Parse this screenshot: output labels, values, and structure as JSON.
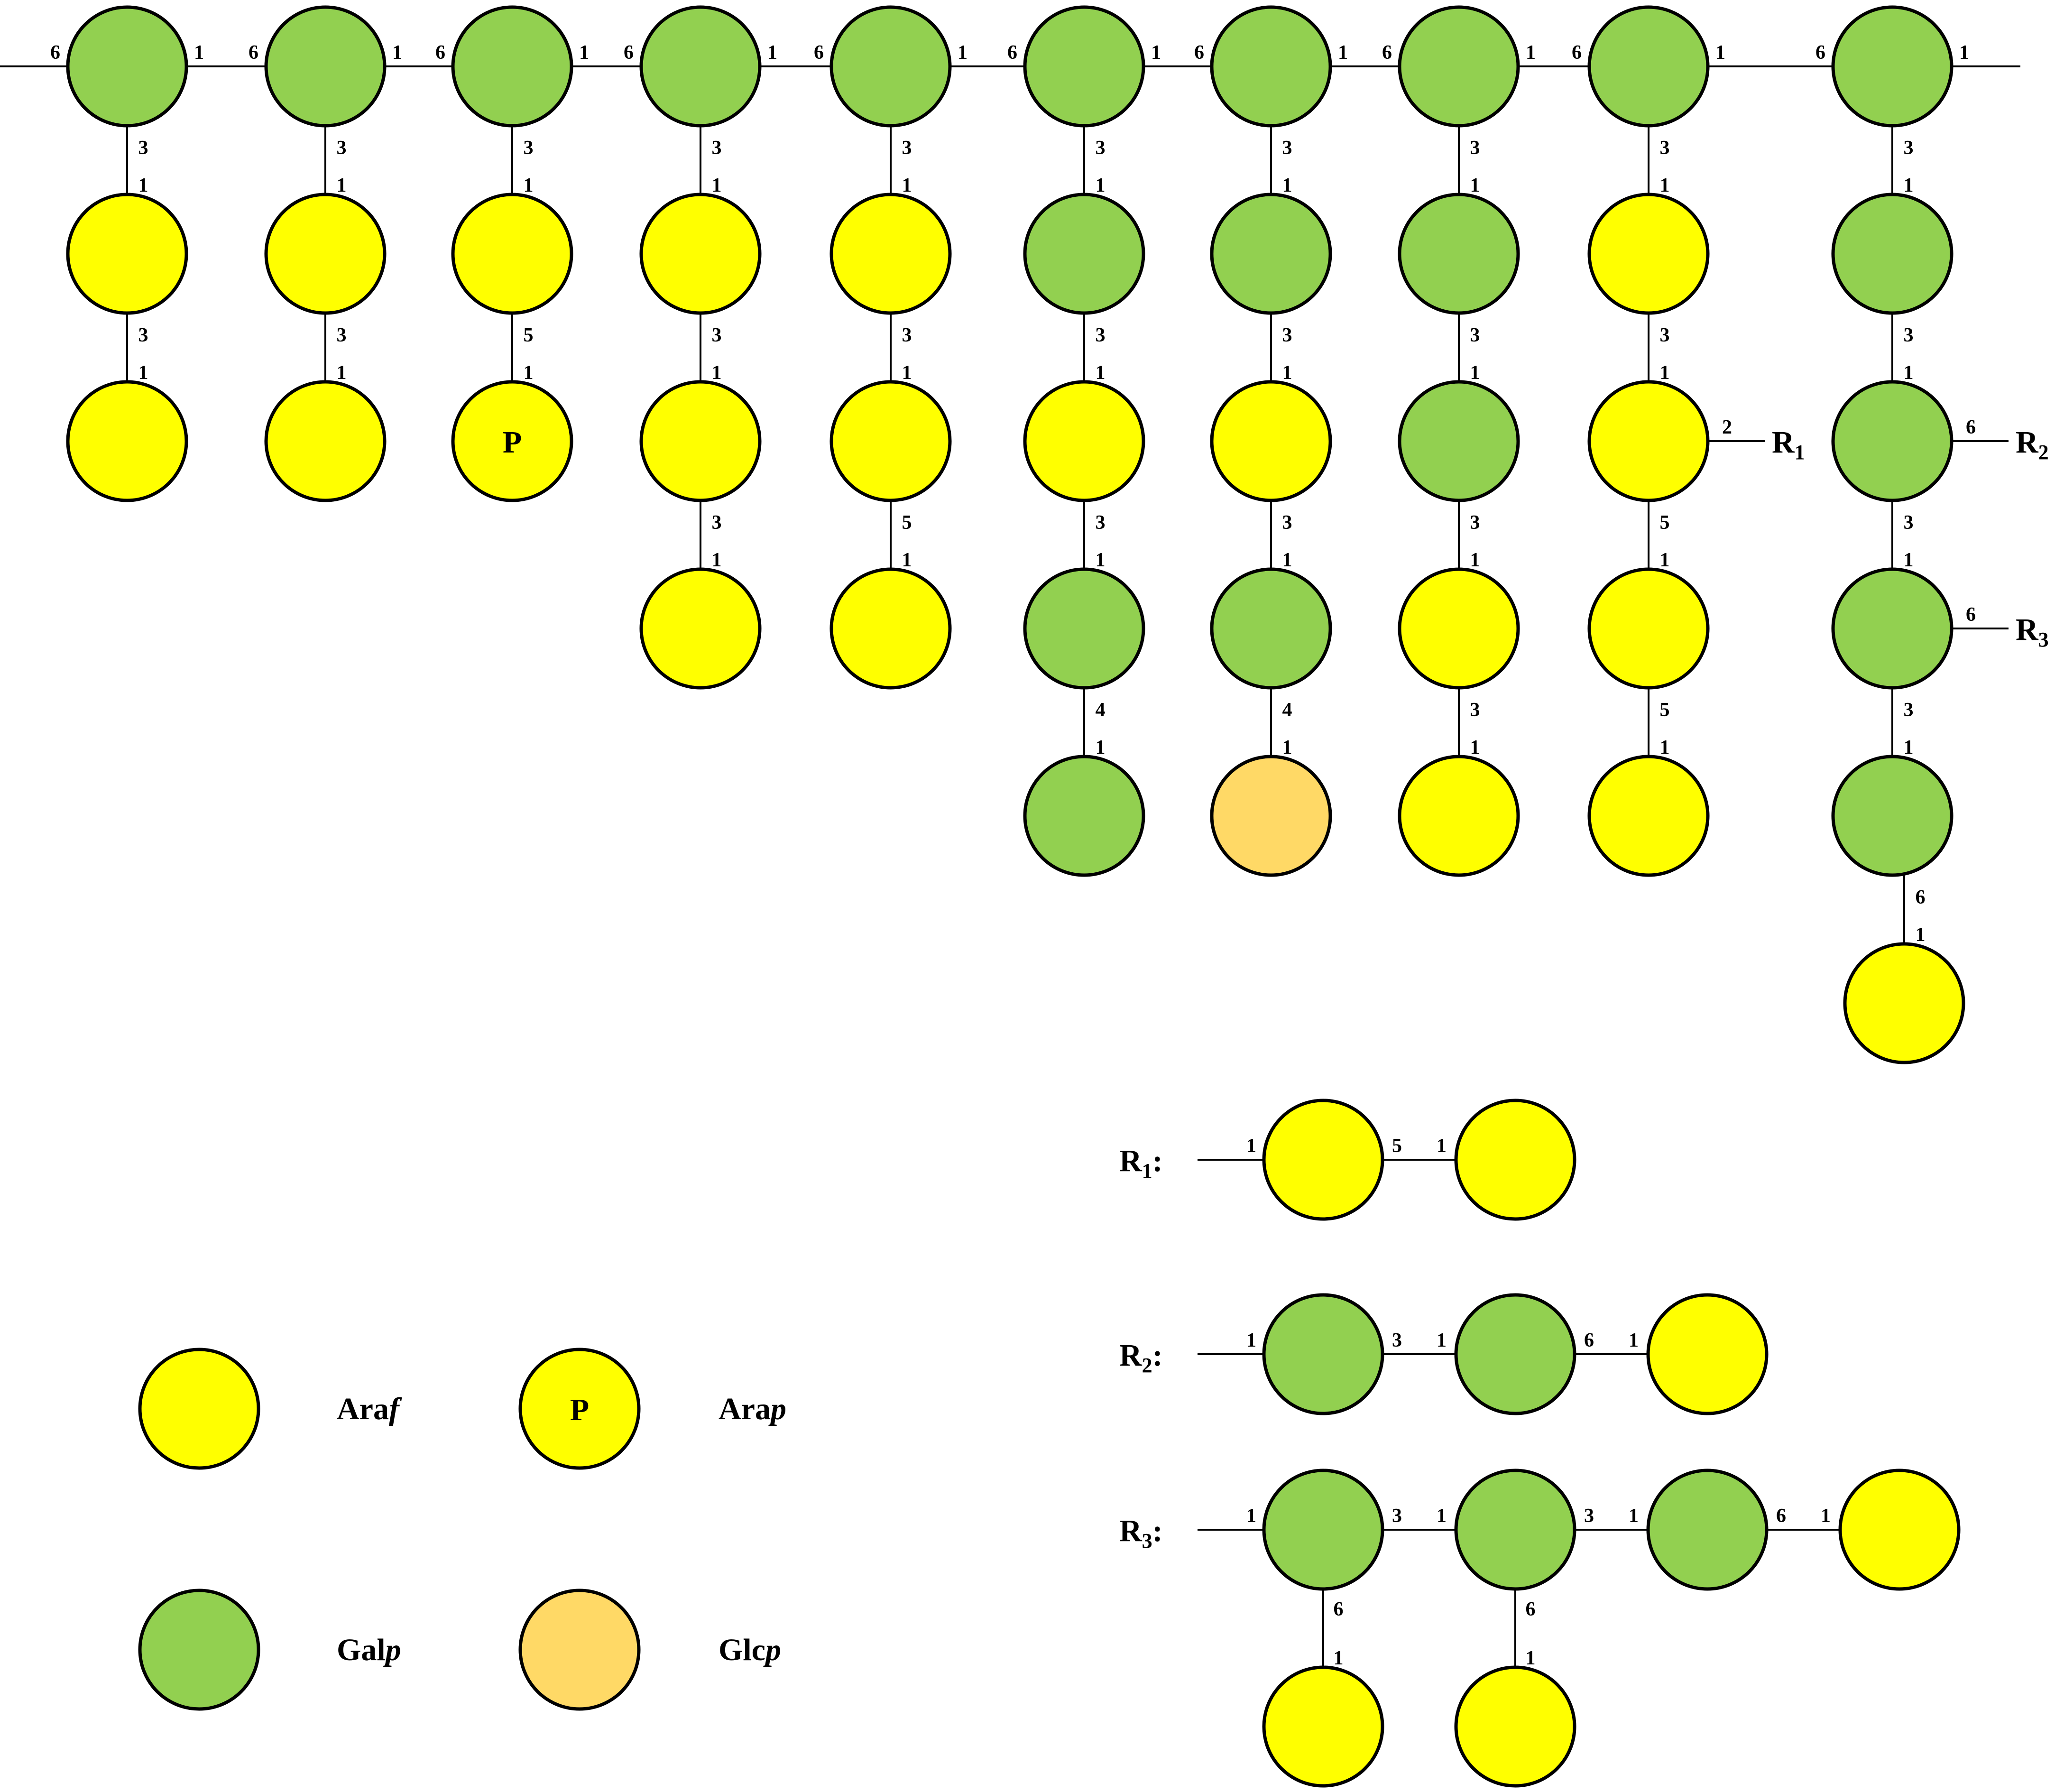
{
  "colors": {
    "araf": "#ffff00",
    "arap": "#ffff00",
    "galp": "#92d050",
    "glcp": "#ffd966",
    "stroke": "#000000",
    "line": "#000000"
  },
  "backbone": {
    "units": [
      "galp",
      "galp",
      "galp",
      "galp",
      "galp",
      "galp",
      "galp",
      "galp",
      "galp",
      "galp"
    ],
    "links": [
      {
        "a": "6",
        "b": "1"
      },
      {
        "a": "6",
        "b": "1"
      },
      {
        "a": "6",
        "b": "1"
      },
      {
        "a": "6",
        "b": "1"
      },
      {
        "a": "6",
        "b": "1"
      },
      {
        "a": "6",
        "b": "1"
      },
      {
        "a": "6",
        "b": "1"
      },
      {
        "a": "6",
        "b": "1"
      },
      {
        "a": "6",
        "b": "1"
      },
      {
        "a": "6",
        "b": "1"
      }
    ]
  },
  "branches": [
    {
      "nodes": [
        {
          "t": "araf"
        },
        {
          "t": "araf"
        }
      ],
      "links": [
        {
          "a": "3",
          "b": "1"
        },
        {
          "a": "3",
          "b": "1"
        }
      ]
    },
    {
      "nodes": [
        {
          "t": "araf"
        },
        {
          "t": "araf"
        }
      ],
      "links": [
        {
          "a": "3",
          "b": "1"
        },
        {
          "a": "3",
          "b": "1"
        }
      ]
    },
    {
      "nodes": [
        {
          "t": "araf"
        },
        {
          "t": "arap",
          "text": "P"
        }
      ],
      "links": [
        {
          "a": "3",
          "b": "1"
        },
        {
          "a": "5",
          "b": "1"
        }
      ]
    },
    {
      "nodes": [
        {
          "t": "araf"
        },
        {
          "t": "araf"
        },
        {
          "t": "araf"
        }
      ],
      "links": [
        {
          "a": "3",
          "b": "1"
        },
        {
          "a": "3",
          "b": "1"
        },
        {
          "a": "3",
          "b": "1"
        }
      ]
    },
    {
      "nodes": [
        {
          "t": "araf"
        },
        {
          "t": "araf"
        },
        {
          "t": "araf"
        }
      ],
      "links": [
        {
          "a": "3",
          "b": "1"
        },
        {
          "a": "3",
          "b": "1"
        },
        {
          "a": "5",
          "b": "1"
        }
      ]
    },
    {
      "nodes": [
        {
          "t": "galp"
        },
        {
          "t": "araf"
        },
        {
          "t": "galp"
        },
        {
          "t": "galp"
        }
      ],
      "links": [
        {
          "a": "3",
          "b": "1"
        },
        {
          "a": "3",
          "b": "1"
        },
        {
          "a": "3",
          "b": "1"
        },
        {
          "a": "4",
          "b": "1"
        }
      ]
    },
    {
      "nodes": [
        {
          "t": "galp"
        },
        {
          "t": "araf"
        },
        {
          "t": "galp"
        },
        {
          "t": "glcp"
        }
      ],
      "links": [
        {
          "a": "3",
          "b": "1"
        },
        {
          "a": "3",
          "b": "1"
        },
        {
          "a": "3",
          "b": "1"
        },
        {
          "a": "4",
          "b": "1"
        }
      ]
    },
    {
      "nodes": [
        {
          "t": "galp"
        },
        {
          "t": "galp"
        },
        {
          "t": "araf"
        },
        {
          "t": "araf"
        }
      ],
      "links": [
        {
          "a": "3",
          "b": "1"
        },
        {
          "a": "3",
          "b": "1"
        },
        {
          "a": "3",
          "b": "1"
        },
        {
          "a": "3",
          "b": "1"
        }
      ]
    },
    {
      "nodes": [
        {
          "t": "araf"
        },
        {
          "t": "araf",
          "sub": {
            "a": "2",
            "r": "R",
            "i": "1"
          }
        },
        {
          "t": "araf"
        },
        {
          "t": "araf"
        }
      ],
      "links": [
        {
          "a": "3",
          "b": "1"
        },
        {
          "a": "3",
          "b": "1"
        },
        {
          "a": "5",
          "b": "1"
        },
        {
          "a": "5",
          "b": "1"
        }
      ]
    },
    {
      "nodes": [
        {
          "t": "galp"
        },
        {
          "t": "galp",
          "sub": {
            "a": "6",
            "r": "R",
            "i": "2"
          }
        },
        {
          "t": "galp",
          "sub": {
            "a": "6",
            "r": "R",
            "i": "3"
          }
        },
        {
          "t": "galp"
        },
        {
          "t": "araf"
        }
      ],
      "links": [
        {
          "a": "3",
          "b": "1"
        },
        {
          "a": "3",
          "b": "1"
        },
        {
          "a": "3",
          "b": "1"
        },
        {
          "a": "3",
          "b": "1"
        },
        {
          "a": "6",
          "b": "1"
        }
      ]
    }
  ],
  "substituents": [
    {
      "r": "R",
      "i": "1",
      "colon": ":",
      "first": "1",
      "nodes": [
        {
          "t": "araf"
        },
        {
          "t": "araf"
        }
      ],
      "links": [
        {
          "a": "5",
          "b": "1"
        }
      ],
      "pendants": []
    },
    {
      "r": "R",
      "i": "2",
      "colon": ":",
      "first": "1",
      "nodes": [
        {
          "t": "galp"
        },
        {
          "t": "galp"
        },
        {
          "t": "araf"
        }
      ],
      "links": [
        {
          "a": "3",
          "b": "1"
        },
        {
          "a": "6",
          "b": "1"
        }
      ],
      "pendants": []
    },
    {
      "r": "R",
      "i": "3",
      "colon": ":",
      "first": "1",
      "nodes": [
        {
          "t": "galp"
        },
        {
          "t": "galp"
        },
        {
          "t": "galp"
        },
        {
          "t": "araf"
        }
      ],
      "links": [
        {
          "a": "3",
          "b": "1"
        },
        {
          "a": "3",
          "b": "1"
        },
        {
          "a": "6",
          "b": "1"
        }
      ],
      "pendants": [
        {
          "on": 0,
          "t": "araf",
          "a": "6",
          "b": "1"
        },
        {
          "on": 1,
          "t": "araf",
          "a": "6",
          "b": "1"
        }
      ]
    }
  ],
  "legend": [
    {
      "t": "araf",
      "name": "Ara",
      "suffix": "f"
    },
    {
      "t": "arap",
      "text": "P",
      "name": "Ara",
      "suffix": "p"
    },
    {
      "t": "galp",
      "name": "Gal",
      "suffix": "p"
    },
    {
      "t": "glcp",
      "name": "Glc",
      "suffix": "p"
    }
  ]
}
